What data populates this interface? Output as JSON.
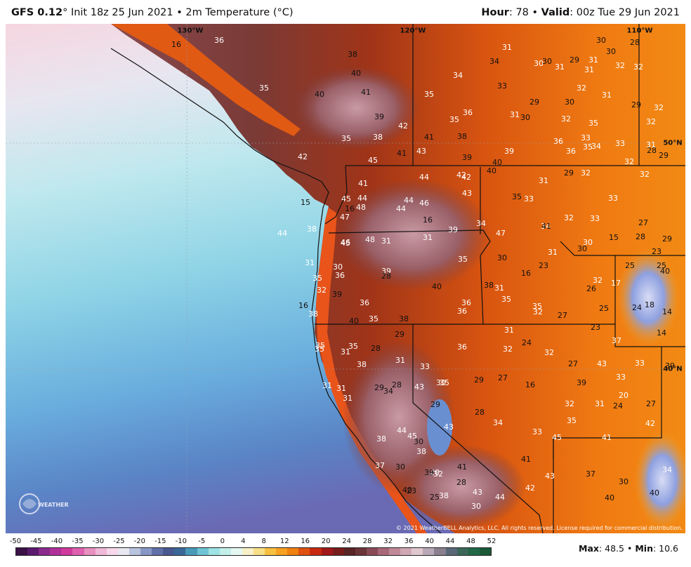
{
  "header": {
    "model": "GFS 0.12",
    "degree_sign": "°",
    "init_text": "Init 18z 25 Jun 2021",
    "bullet": "•",
    "field_text": "2m Temperature (°C)",
    "hour_label": "Hour",
    "hour_value": "78",
    "valid_label": "Valid",
    "valid_value": "00z Tue 29 Jun 2021"
  },
  "map": {
    "grid_labels": [
      "130°W",
      "120°W",
      "110°W",
      "50°N",
      "40°N"
    ],
    "copyright": "© 2021 WeatherBELL Analytics, LLC. All rights reserved. License required for commercial distribution.",
    "logo_text": "WEATHERBELL",
    "values": [
      {
        "v": "36",
        "t": "l"
      },
      {
        "v": "16",
        "t": "d"
      },
      {
        "v": "38",
        "t": "d"
      },
      {
        "v": "40",
        "t": "d"
      },
      {
        "v": "41",
        "t": "d"
      },
      {
        "v": "40",
        "t": "d"
      },
      {
        "v": "35",
        "t": "l"
      },
      {
        "v": "39",
        "t": "d"
      },
      {
        "v": "42",
        "t": "l"
      },
      {
        "v": "41",
        "t": "d"
      },
      {
        "v": "38",
        "t": "l"
      },
      {
        "v": "35",
        "t": "l"
      },
      {
        "v": "36",
        "t": "l"
      },
      {
        "v": "42",
        "t": "l"
      },
      {
        "v": "45",
        "t": "l"
      },
      {
        "v": "41",
        "t": "d"
      },
      {
        "v": "43",
        "t": "l"
      },
      {
        "v": "39",
        "t": "d"
      },
      {
        "v": "38",
        "t": "d"
      },
      {
        "v": "31",
        "t": "l"
      },
      {
        "v": "34",
        "t": "d"
      },
      {
        "v": "33",
        "t": "d"
      },
      {
        "v": "34",
        "t": "l"
      },
      {
        "v": "35",
        "t": "l"
      },
      {
        "v": "35",
        "t": "l"
      },
      {
        "v": "31",
        "t": "l"
      },
      {
        "v": "30",
        "t": "d"
      },
      {
        "v": "29",
        "t": "d"
      },
      {
        "v": "29",
        "t": "d"
      },
      {
        "v": "30",
        "t": "d"
      },
      {
        "v": "28",
        "t": "d"
      },
      {
        "v": "31",
        "t": "l"
      },
      {
        "v": "30",
        "t": "l"
      },
      {
        "v": "30",
        "t": "d"
      },
      {
        "v": "31",
        "t": "l"
      },
      {
        "v": "31",
        "t": "l"
      },
      {
        "v": "30",
        "t": "d"
      },
      {
        "v": "32",
        "t": "l"
      },
      {
        "v": "32",
        "t": "l"
      },
      {
        "v": "32",
        "t": "l"
      },
      {
        "v": "31",
        "t": "l"
      },
      {
        "v": "29",
        "t": "d"
      },
      {
        "v": "32",
        "t": "l"
      },
      {
        "v": "30",
        "t": "d"
      },
      {
        "v": "32",
        "t": "l"
      },
      {
        "v": "35",
        "t": "l"
      },
      {
        "v": "32",
        "t": "l"
      },
      {
        "v": "33",
        "t": "l"
      },
      {
        "v": "36",
        "t": "l"
      },
      {
        "v": "35",
        "t": "l"
      },
      {
        "v": "36",
        "t": "l"
      },
      {
        "v": "34",
        "t": "l"
      },
      {
        "v": "33",
        "t": "l"
      },
      {
        "v": "31",
        "t": "l"
      },
      {
        "v": "28",
        "t": "d"
      },
      {
        "v": "29",
        "t": "d"
      },
      {
        "v": "32",
        "t": "l"
      },
      {
        "v": "39",
        "t": "l"
      },
      {
        "v": "40",
        "t": "d"
      },
      {
        "v": "40",
        "t": "d"
      },
      {
        "v": "42",
        "t": "l"
      },
      {
        "v": "44",
        "t": "l"
      },
      {
        "v": "29",
        "t": "d"
      },
      {
        "v": "32",
        "t": "l"
      },
      {
        "v": "32",
        "t": "l"
      },
      {
        "v": "31",
        "t": "l"
      },
      {
        "v": "35",
        "t": "d"
      },
      {
        "v": "33",
        "t": "l"
      },
      {
        "v": "33",
        "t": "l"
      },
      {
        "v": "32",
        "t": "l"
      },
      {
        "v": "33",
        "t": "l"
      },
      {
        "v": "34",
        "t": "l"
      },
      {
        "v": "27",
        "t": "d"
      },
      {
        "v": "28",
        "t": "d"
      },
      {
        "v": "29",
        "t": "d"
      },
      {
        "v": "23",
        "t": "d"
      },
      {
        "v": "15",
        "t": "d"
      },
      {
        "v": "41",
        "t": "l"
      },
      {
        "v": "45",
        "t": "l"
      },
      {
        "v": "44",
        "t": "l"
      },
      {
        "v": "48",
        "t": "l"
      },
      {
        "v": "44",
        "t": "l"
      },
      {
        "v": "44",
        "t": "l"
      },
      {
        "v": "46",
        "t": "l"
      },
      {
        "v": "43",
        "t": "l"
      },
      {
        "v": "42",
        "t": "l"
      },
      {
        "v": "16",
        "t": "d"
      },
      {
        "v": "38",
        "t": "l"
      },
      {
        "v": "47",
        "t": "l"
      },
      {
        "v": "16",
        "t": "d"
      },
      {
        "v": "46",
        "t": "l"
      },
      {
        "v": "44",
        "t": "l"
      },
      {
        "v": "39",
        "t": "l"
      },
      {
        "v": "34",
        "t": "l"
      },
      {
        "v": "47",
        "t": "l"
      },
      {
        "v": "41",
        "t": "d"
      },
      {
        "v": "45",
        "t": "l"
      },
      {
        "v": "48",
        "t": "l"
      },
      {
        "v": "31",
        "t": "l"
      },
      {
        "v": "31",
        "t": "l"
      },
      {
        "v": "31",
        "t": "l"
      },
      {
        "v": "30",
        "t": "d"
      },
      {
        "v": "30",
        "t": "l"
      },
      {
        "v": "15",
        "t": "d"
      },
      {
        "v": "30",
        "t": "l"
      },
      {
        "v": "31",
        "t": "l"
      },
      {
        "v": "36",
        "t": "l"
      },
      {
        "v": "35",
        "t": "l"
      },
      {
        "v": "30",
        "t": "d"
      },
      {
        "v": "23",
        "t": "d"
      },
      {
        "v": "25",
        "t": "d"
      },
      {
        "v": "25",
        "t": "d"
      },
      {
        "v": "40",
        "t": "d"
      },
      {
        "v": "39",
        "t": "l"
      },
      {
        "v": "28",
        "t": "d"
      },
      {
        "v": "16",
        "t": "d"
      },
      {
        "v": "35",
        "t": "l"
      },
      {
        "v": "40",
        "t": "d"
      },
      {
        "v": "38",
        "t": "d"
      },
      {
        "v": "31",
        "t": "l"
      },
      {
        "v": "32",
        "t": "l"
      },
      {
        "v": "26",
        "t": "d"
      },
      {
        "v": "17",
        "t": "l"
      },
      {
        "v": "32",
        "t": "l"
      },
      {
        "v": "39",
        "t": "d"
      },
      {
        "v": "35",
        "t": "l"
      },
      {
        "v": "36",
        "t": "l"
      },
      {
        "v": "36",
        "t": "l"
      },
      {
        "v": "36",
        "t": "l"
      },
      {
        "v": "35",
        "t": "l"
      },
      {
        "v": "32",
        "t": "l"
      },
      {
        "v": "27",
        "t": "d"
      },
      {
        "v": "25",
        "t": "d"
      },
      {
        "v": "24",
        "t": "d"
      },
      {
        "v": "18",
        "t": "d"
      },
      {
        "v": "14",
        "t": "d"
      },
      {
        "v": "16",
        "t": "d"
      },
      {
        "v": "38",
        "t": "l"
      },
      {
        "v": "40",
        "t": "d"
      },
      {
        "v": "35",
        "t": "l"
      },
      {
        "v": "38",
        "t": "d"
      },
      {
        "v": "29",
        "t": "d"
      },
      {
        "v": "31",
        "t": "l"
      },
      {
        "v": "23",
        "t": "d"
      },
      {
        "v": "14",
        "t": "d"
      },
      {
        "v": "35",
        "t": "l"
      },
      {
        "v": "35",
        "t": "l"
      },
      {
        "v": "35",
        "t": "l"
      },
      {
        "v": "28",
        "t": "d"
      },
      {
        "v": "31",
        "t": "l"
      },
      {
        "v": "24",
        "t": "d"
      },
      {
        "v": "37",
        "t": "l"
      },
      {
        "v": "36",
        "t": "l"
      },
      {
        "v": "32",
        "t": "l"
      },
      {
        "v": "32",
        "t": "l"
      },
      {
        "v": "27",
        "t": "d"
      },
      {
        "v": "43",
        "t": "l"
      },
      {
        "v": "38",
        "t": "l"
      },
      {
        "v": "33",
        "t": "l"
      },
      {
        "v": "31",
        "t": "l"
      },
      {
        "v": "29",
        "t": "d"
      },
      {
        "v": "27",
        "t": "d"
      },
      {
        "v": "16",
        "t": "d"
      },
      {
        "v": "30",
        "t": "l"
      },
      {
        "v": "43",
        "t": "l"
      },
      {
        "v": "39",
        "t": "d"
      },
      {
        "v": "33",
        "t": "l"
      },
      {
        "v": "33",
        "t": "l"
      },
      {
        "v": "39",
        "t": "d"
      },
      {
        "v": "31",
        "t": "l"
      },
      {
        "v": "31",
        "t": "l"
      },
      {
        "v": "29",
        "t": "d"
      },
      {
        "v": "34",
        "t": "d"
      },
      {
        "v": "28",
        "t": "d"
      },
      {
        "v": "35",
        "t": "l"
      },
      {
        "v": "20",
        "t": "l"
      },
      {
        "v": "31",
        "t": "l"
      },
      {
        "v": "29",
        "t": "d"
      },
      {
        "v": "28",
        "t": "d"
      },
      {
        "v": "34",
        "t": "l"
      },
      {
        "v": "33",
        "t": "l"
      },
      {
        "v": "32",
        "t": "l"
      },
      {
        "v": "31",
        "t": "l"
      },
      {
        "v": "24",
        "t": "d"
      },
      {
        "v": "27",
        "t": "d"
      },
      {
        "v": "35",
        "t": "l"
      },
      {
        "v": "42",
        "t": "l"
      },
      {
        "v": "43",
        "t": "l"
      },
      {
        "v": "44",
        "t": "l"
      },
      {
        "v": "45",
        "t": "l"
      },
      {
        "v": "30",
        "t": "d"
      },
      {
        "v": "38",
        "t": "l"
      },
      {
        "v": "38",
        "t": "l"
      },
      {
        "v": "32",
        "t": "l"
      },
      {
        "v": "41",
        "t": "d"
      },
      {
        "v": "41",
        "t": "d"
      },
      {
        "v": "45",
        "t": "l"
      },
      {
        "v": "41",
        "t": "l"
      },
      {
        "v": "37",
        "t": "l"
      },
      {
        "v": "30",
        "t": "d"
      },
      {
        "v": "20",
        "t": "l"
      },
      {
        "v": "28",
        "t": "d"
      },
      {
        "v": "42",
        "t": "l"
      },
      {
        "v": "43",
        "t": "l"
      },
      {
        "v": "30",
        "t": "d"
      },
      {
        "v": "34",
        "t": "l"
      },
      {
        "v": "37",
        "t": "d"
      },
      {
        "v": "39",
        "t": "d"
      },
      {
        "v": "40",
        "t": "d"
      },
      {
        "v": "23",
        "t": "d"
      },
      {
        "v": "25",
        "t": "d"
      },
      {
        "v": "38",
        "t": "l"
      },
      {
        "v": "43",
        "t": "l"
      },
      {
        "v": "44",
        "t": "l"
      },
      {
        "v": "40",
        "t": "d"
      },
      {
        "v": "40",
        "t": "d"
      },
      {
        "v": "30",
        "t": "l"
      }
    ]
  },
  "legend": {
    "ticks": [
      "-50",
      "-45",
      "-40",
      "-35",
      "-30",
      "-25",
      "-20",
      "-15",
      "-10",
      "-5",
      "0",
      "4",
      "8",
      "12",
      "16",
      "20",
      "24",
      "28",
      "32",
      "36",
      "40",
      "44",
      "48",
      "52"
    ],
    "colors": [
      "#3a1046",
      "#5a1a6e",
      "#8a2a8e",
      "#b0309a",
      "#d03a9c",
      "#e060b0",
      "#e890c0",
      "#f0b8d8",
      "#f6d8ea",
      "#e8e8f0",
      "#b8c4de",
      "#8898c6",
      "#6070a8",
      "#4a5890",
      "#3a6898",
      "#4a9aba",
      "#6ec4d4",
      "#9ee2e4",
      "#c4f0ea",
      "#e6f8f2",
      "#f8f0c8",
      "#f8e088",
      "#f8c040",
      "#f8a020",
      "#f08010",
      "#e05010",
      "#c82810",
      "#a01818",
      "#781c1c",
      "#5a2424",
      "#6a3438",
      "#8a4a58",
      "#a86878",
      "#c08898",
      "#d0a8b4",
      "#e0c8d0",
      "#b8a8b8",
      "#8a8090",
      "#5a6878",
      "#3a6858",
      "#206848",
      "#1a5838"
    ],
    "max_label": "Max",
    "max_value": "48.5",
    "min_label": "Min",
    "min_value": "10.6"
  }
}
